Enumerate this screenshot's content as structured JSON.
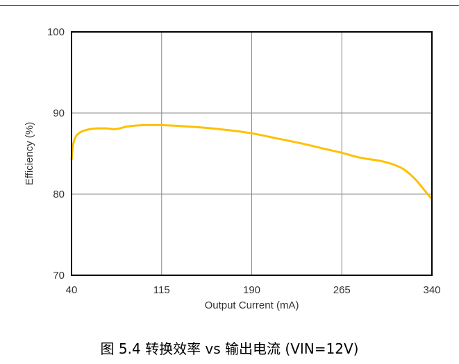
{
  "caption": "图 5.4 转换效率 vs 输出电流 (VIN=12V)",
  "chart_data": {
    "type": "line",
    "title": "",
    "xlabel": "Output Current (mA)",
    "ylabel": "Efficiency (%)",
    "xlim": [
      40,
      340
    ],
    "ylim": [
      70,
      100
    ],
    "xticks": [
      40,
      115,
      190,
      265,
      340
    ],
    "yticks": [
      70,
      80,
      90,
      100
    ],
    "grid": true,
    "series": [
      {
        "color": "#FFC000",
        "x": [
          40,
          41,
          42,
          44,
          47,
          50,
          55,
          60,
          65,
          70,
          75,
          80,
          85,
          90,
          100,
          115,
          130,
          150,
          170,
          190,
          210,
          230,
          250,
          265,
          280,
          300,
          315,
          325,
          332,
          337,
          340
        ],
        "y": [
          84.2,
          85.8,
          86.5,
          87.2,
          87.6,
          87.8,
          88.0,
          88.1,
          88.1,
          88.1,
          88.0,
          88.1,
          88.3,
          88.4,
          88.5,
          88.5,
          88.4,
          88.2,
          87.9,
          87.5,
          86.9,
          86.3,
          85.6,
          85.1,
          84.5,
          84.0,
          83.2,
          82.0,
          80.8,
          79.9,
          79.4
        ]
      }
    ]
  }
}
